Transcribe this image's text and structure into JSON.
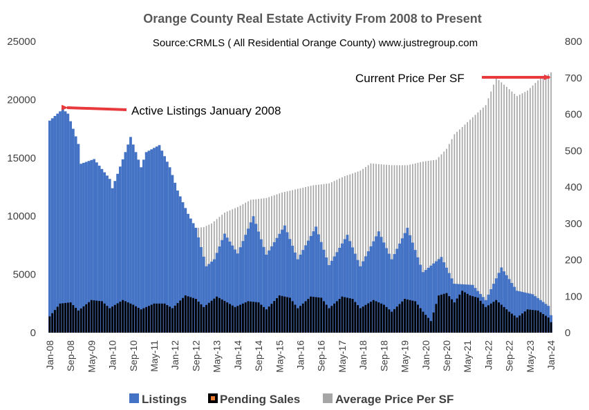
{
  "chart_data": {
    "type": "bar",
    "title": "Orange County Real Estate Activity From 2008 to Present",
    "subtitle": "Source:CRMLS ( All Residential Orange County)  www.justregroup.com",
    "y_left": {
      "min": 0,
      "max": 25000,
      "ticks": [
        "0",
        "5000",
        "10000",
        "15000",
        "20000",
        "25000"
      ]
    },
    "y_right": {
      "min": 0,
      "max": 800,
      "ticks": [
        "0",
        "100",
        "200",
        "300",
        "400",
        "500",
        "600",
        "700",
        "800"
      ]
    },
    "x_tick_labels": [
      "Jan-08",
      "Sep-08",
      "May-09",
      "Jan-10",
      "Sep-10",
      "May-11",
      "Jan-12",
      "Sep-12",
      "May-13",
      "Jan-14",
      "Sep-14",
      "May-15",
      "Jan-16",
      "Sep-16",
      "May-17",
      "Jan-18",
      "Sep-18",
      "May-19",
      "Jan-20",
      "Sep-20",
      "May-21",
      "Jan-22",
      "Sep-22",
      "May-23",
      "Jan-24"
    ],
    "x_tick_interval_months": 8,
    "series": [
      {
        "name": "Listings",
        "axis": "left",
        "color": "#4472C4",
        "keyframes": [
          [
            "Jan-08",
            18200
          ],
          [
            "Jun-08",
            19200
          ],
          [
            "Aug-08",
            18800
          ],
          [
            "Dec-08",
            16200
          ],
          [
            "Jan-09",
            14500
          ],
          [
            "Jun-09",
            14900
          ],
          [
            "Dec-09",
            13200
          ],
          [
            "Jan-10",
            12400
          ],
          [
            "Jun-10",
            15500
          ],
          [
            "Aug-10",
            16800
          ],
          [
            "Dec-10",
            14200
          ],
          [
            "Feb-11",
            15500
          ],
          [
            "Jul-11",
            16100
          ],
          [
            "Nov-11",
            14200
          ],
          [
            "Feb-12",
            12200
          ],
          [
            "Jun-12",
            10200
          ],
          [
            "Sep-12",
            9000
          ],
          [
            "Jan-13",
            5700
          ],
          [
            "Apr-13",
            6300
          ],
          [
            "Aug-13",
            8500
          ],
          [
            "Jan-14",
            6800
          ],
          [
            "Jul-14",
            10000
          ],
          [
            "Dec-14",
            6700
          ],
          [
            "Jul-15",
            9200
          ],
          [
            "Dec-15",
            6300
          ],
          [
            "Jul-16",
            9100
          ],
          [
            "Dec-16",
            5800
          ],
          [
            "Jul-17",
            8400
          ],
          [
            "Dec-17",
            5700
          ],
          [
            "Jul-18",
            8700
          ],
          [
            "Dec-18",
            6300
          ],
          [
            "Jun-19",
            9000
          ],
          [
            "Dec-19",
            5200
          ],
          [
            "Jul-20",
            6500
          ],
          [
            "Dec-20",
            4200
          ],
          [
            "Jul-21",
            4100
          ],
          [
            "Dec-21",
            2800
          ],
          [
            "Jun-22",
            5600
          ],
          [
            "Dec-22",
            3600
          ],
          [
            "Jun-23",
            3300
          ],
          [
            "Dec-23",
            2300
          ],
          [
            "Jan-24",
            1500
          ]
        ]
      },
      {
        "name": "Pending Sales",
        "axis": "left",
        "color": "#000000",
        "legend_color": "#ED7D31",
        "keyframes": [
          [
            "Jan-08",
            1400
          ],
          [
            "May-08",
            2500
          ],
          [
            "Sep-08",
            2600
          ],
          [
            "Dec-08",
            1900
          ],
          [
            "May-09",
            2800
          ],
          [
            "Sep-09",
            2700
          ],
          [
            "Dec-09",
            2100
          ],
          [
            "May-10",
            2800
          ],
          [
            "Sep-10",
            2400
          ],
          [
            "Dec-10",
            2000
          ],
          [
            "May-11",
            2500
          ],
          [
            "Sep-11",
            2500
          ],
          [
            "Dec-11",
            2100
          ],
          [
            "May-12",
            3200
          ],
          [
            "Sep-12",
            2900
          ],
          [
            "Dec-12",
            2200
          ],
          [
            "May-13",
            3100
          ],
          [
            "Sep-13",
            2600
          ],
          [
            "Dec-13",
            2200
          ],
          [
            "May-14",
            2700
          ],
          [
            "Sep-14",
            2600
          ],
          [
            "Dec-14",
            2000
          ],
          [
            "May-15",
            3200
          ],
          [
            "Sep-15",
            3000
          ],
          [
            "Dec-15",
            2100
          ],
          [
            "May-16",
            3100
          ],
          [
            "Sep-16",
            3000
          ],
          [
            "Dec-16",
            2100
          ],
          [
            "May-17",
            3100
          ],
          [
            "Sep-17",
            2900
          ],
          [
            "Dec-17",
            2100
          ],
          [
            "May-18",
            2800
          ],
          [
            "Sep-18",
            2400
          ],
          [
            "Dec-18",
            1800
          ],
          [
            "May-19",
            2900
          ],
          [
            "Sep-19",
            2700
          ],
          [
            "Dec-19",
            1800
          ],
          [
            "Mar-20",
            1000
          ],
          [
            "Jun-20",
            3200
          ],
          [
            "Sep-20",
            3400
          ],
          [
            "Dec-20",
            2600
          ],
          [
            "Mar-21",
            3600
          ],
          [
            "Jun-21",
            3200
          ],
          [
            "Sep-21",
            3000
          ],
          [
            "Dec-21",
            2200
          ],
          [
            "Apr-22",
            2800
          ],
          [
            "Sep-22",
            1800
          ],
          [
            "Dec-22",
            1300
          ],
          [
            "Apr-23",
            2000
          ],
          [
            "Aug-23",
            1900
          ],
          [
            "Dec-23",
            1300
          ],
          [
            "Jan-24",
            900
          ]
        ]
      },
      {
        "name": "Average Price Per SF",
        "axis": "right",
        "color": "#A6A6A6",
        "keyframes": [
          [
            "Jan-08",
            350
          ],
          [
            "Jun-08",
            330
          ],
          [
            "Dec-08",
            295
          ],
          [
            "Jun-09",
            275
          ],
          [
            "Jan-10",
            290
          ],
          [
            "Jun-10",
            290
          ],
          [
            "Dec-10",
            290
          ],
          [
            "Jun-11",
            275
          ],
          [
            "Jan-12",
            270
          ],
          [
            "Jun-12",
            285
          ],
          [
            "Dec-12",
            290
          ],
          [
            "Mar-13",
            300
          ],
          [
            "Aug-13",
            330
          ],
          [
            "Jan-14",
            345
          ],
          [
            "Jun-14",
            365
          ],
          [
            "Dec-14",
            370
          ],
          [
            "Jun-15",
            385
          ],
          [
            "Dec-15",
            395
          ],
          [
            "Jun-16",
            405
          ],
          [
            "Dec-16",
            410
          ],
          [
            "Jun-17",
            430
          ],
          [
            "Dec-17",
            445
          ],
          [
            "Apr-18",
            465
          ],
          [
            "Dec-18",
            460
          ],
          [
            "Jun-19",
            460
          ],
          [
            "Dec-19",
            470
          ],
          [
            "May-20",
            475
          ],
          [
            "Sep-20",
            505
          ],
          [
            "Dec-20",
            545
          ],
          [
            "Jun-21",
            585
          ],
          [
            "Dec-21",
            625
          ],
          [
            "Apr-22",
            700
          ],
          [
            "Aug-22",
            675
          ],
          [
            "Dec-22",
            650
          ],
          [
            "Apr-23",
            665
          ],
          [
            "Sep-23",
            700
          ],
          [
            "Dec-23",
            710
          ],
          [
            "Jan-24",
            715
          ]
        ]
      }
    ],
    "annotations": [
      {
        "text": "Active Listings January 2008"
      },
      {
        "text": "Current Price Per SF"
      }
    ],
    "legend": [
      "Listings",
      "Pending Sales",
      "Average Price Per SF"
    ],
    "legend_position": "bottom"
  }
}
